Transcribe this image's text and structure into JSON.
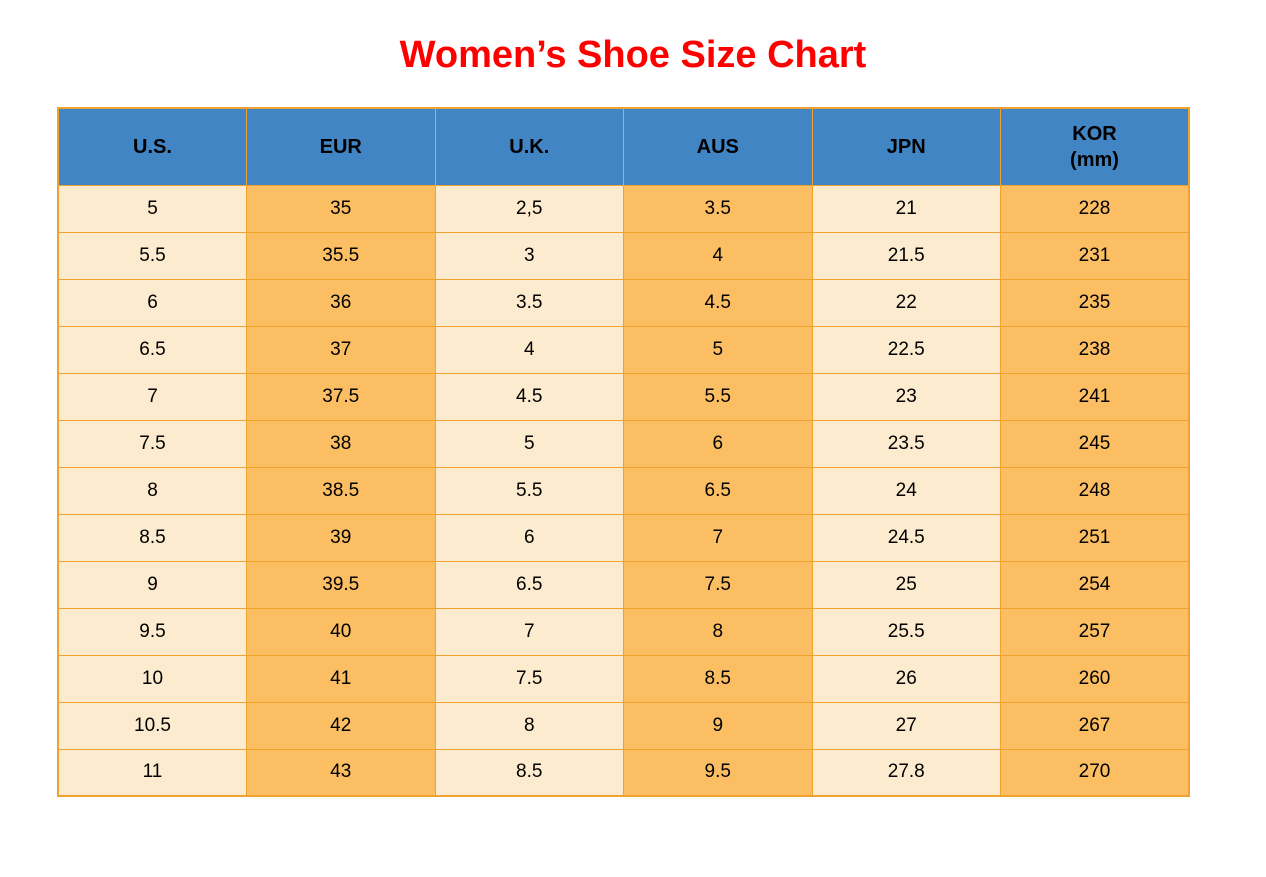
{
  "title": "Women’s Shoe Size Chart",
  "colors": {
    "header_bg": "#4285C5",
    "col_light": "#FCEBCE",
    "col_dark": "#FBBE63",
    "border": "#F0A22E",
    "title_red": "#FF0000",
    "text": "#000000",
    "page_bg": "#FFFFFF"
  },
  "chart_data": {
    "type": "table",
    "title": "Women’s Shoe Size Chart",
    "columns": [
      "U.S.",
      "EUR",
      "U.K.",
      "AUS",
      "JPN",
      "KOR (mm)"
    ],
    "header": [
      {
        "label": "U.S."
      },
      {
        "label": "EUR"
      },
      {
        "label": "U.K."
      },
      {
        "label": "AUS"
      },
      {
        "label": "JPN"
      },
      {
        "label": "KOR",
        "sublabel": "(mm)"
      }
    ],
    "rows": [
      [
        "5",
        "35",
        "2,5",
        "3.5",
        "21",
        "228"
      ],
      [
        "5.5",
        "35.5",
        "3",
        "4",
        "21.5",
        "231"
      ],
      [
        "6",
        "36",
        "3.5",
        "4.5",
        "22",
        "235"
      ],
      [
        "6.5",
        "37",
        "4",
        "5",
        "22.5",
        "238"
      ],
      [
        "7",
        "37.5",
        "4.5",
        "5.5",
        "23",
        "241"
      ],
      [
        "7.5",
        "38",
        "5",
        "6",
        "23.5",
        "245"
      ],
      [
        "8",
        "38.5",
        "5.5",
        "6.5",
        "24",
        "248"
      ],
      [
        "8.5",
        "39",
        "6",
        "7",
        "24.5",
        "251"
      ],
      [
        "9",
        "39.5",
        "6.5",
        "7.5",
        "25",
        "254"
      ],
      [
        "9.5",
        "40",
        "7",
        "8",
        "25.5",
        "257"
      ],
      [
        "10",
        "41",
        "7.5",
        "8.5",
        "26",
        "260"
      ],
      [
        "10.5",
        "42",
        "8",
        "9",
        "27",
        "267"
      ],
      [
        "11",
        "43",
        "8.5",
        "9.5",
        "27.8",
        "270"
      ]
    ]
  }
}
